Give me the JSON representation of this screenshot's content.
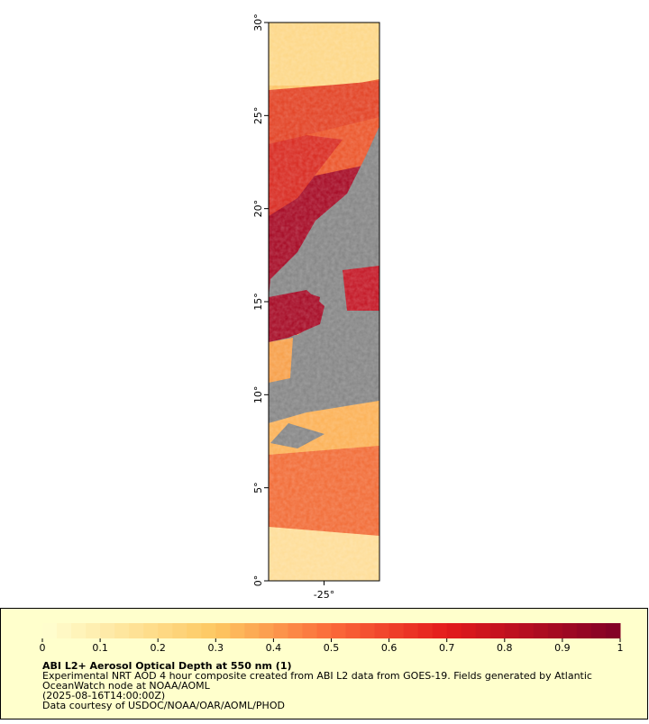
{
  "map": {
    "lat_range": [
      0,
      30
    ],
    "lon_range": [
      -28,
      -22
    ],
    "lat_ticks": [
      {
        "value": 0,
        "label": "0°"
      },
      {
        "value": 5,
        "label": "5°"
      },
      {
        "value": 10,
        "label": "10°"
      },
      {
        "value": 15,
        "label": "15°"
      },
      {
        "value": 20,
        "label": "20°"
      },
      {
        "value": 25,
        "label": "25°"
      },
      {
        "value": 30,
        "label": "30°"
      }
    ],
    "lon_ticks": [
      {
        "value": -25,
        "label": "-25°"
      }
    ]
  },
  "legend": {
    "range": [
      0,
      1
    ],
    "ticks": [
      0,
      0.1,
      0.2,
      0.3,
      0.4,
      0.5,
      0.6,
      0.7,
      0.8,
      0.9,
      1
    ],
    "title": "ABI L2+ Aerosol Optical Depth at 550 nm (1)",
    "lines": [
      "Experimental NRT AOD 4 hour composite created from ABI L2 data from GOES-19. Fields generated by Atlantic",
      "OceanWatch node at NOAA/AOML",
      "(2025-08-16T14:00:00Z)",
      "Data courtesy of USDOC/NOAA/OAR/AOML/PHOD"
    ]
  }
}
